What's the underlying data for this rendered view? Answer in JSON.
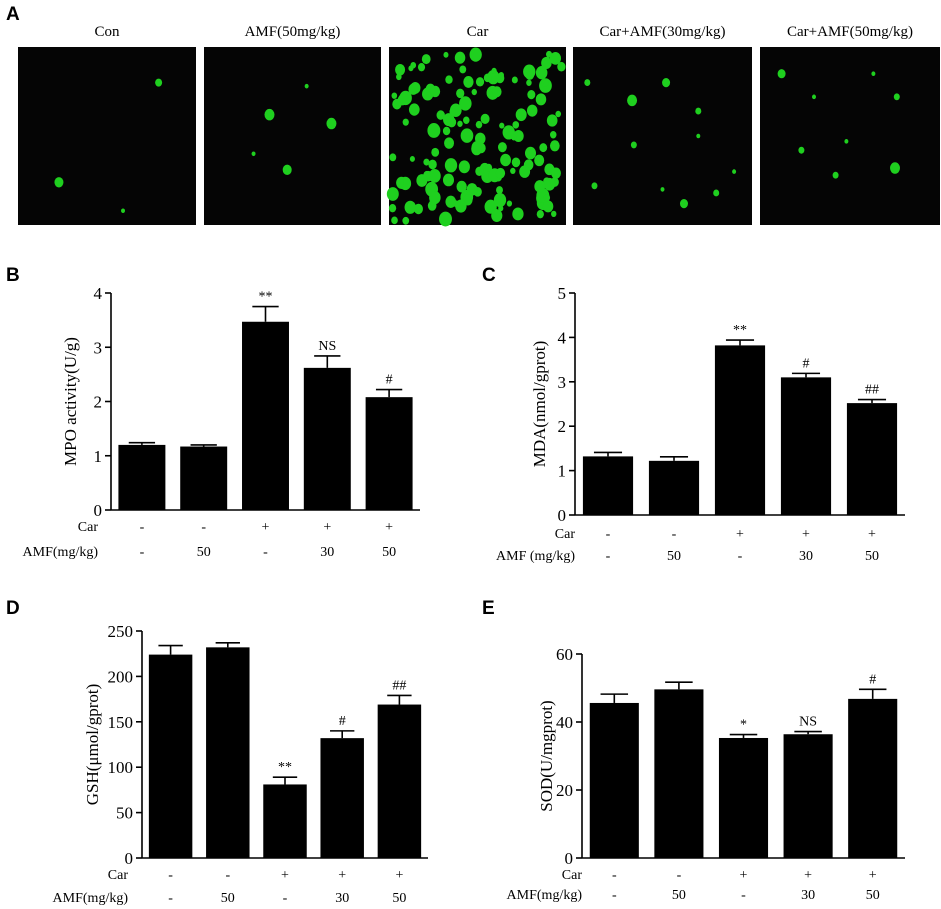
{
  "panel_a": {
    "letter": "A",
    "images": [
      {
        "title": "Con",
        "cell_count": "low"
      },
      {
        "title": "AMF(50mg/kg)",
        "cell_count": "low"
      },
      {
        "title": "Car",
        "cell_count": "high"
      },
      {
        "title": "Car+AMF(30mg/kg)",
        "cell_count": "moderate"
      },
      {
        "title": "Car+AMF(50mg/kg)",
        "cell_count": "low"
      }
    ],
    "background": "#050505",
    "cell_color": "#1fd01f"
  },
  "chart_data": [
    {
      "panel": "B",
      "type": "bar",
      "ylabel": "MPO activity(U/g)",
      "ylim": [
        0,
        4
      ],
      "yticks": [
        "0",
        "1",
        "2",
        "3",
        "4"
      ],
      "values": [
        1.2,
        1.17,
        3.47,
        2.62,
        2.08
      ],
      "errors": [
        0.04,
        0.03,
        0.28,
        0.22,
        0.14
      ],
      "significance": [
        "",
        "",
        "**",
        "NS",
        "#"
      ],
      "conditions": [
        {
          "label": "Car",
          "values": [
            "-",
            "-",
            "+",
            "+",
            "+"
          ]
        },
        {
          "label": "AMF(mg/kg)",
          "values": [
            "-",
            "50",
            "-",
            "30",
            "50"
          ]
        }
      ]
    },
    {
      "panel": "C",
      "type": "bar",
      "ylabel": "MDA(nmol/gprot)",
      "ylim": [
        0,
        5
      ],
      "yticks": [
        "0",
        "1",
        "2",
        "3",
        "4",
        "5"
      ],
      "values": [
        1.32,
        1.22,
        3.82,
        3.1,
        2.52
      ],
      "errors": [
        0.09,
        0.09,
        0.12,
        0.09,
        0.08
      ],
      "significance": [
        "",
        "",
        "**",
        "#",
        "##"
      ],
      "conditions": [
        {
          "label": "Car",
          "values": [
            "-",
            "-",
            "+",
            "+",
            "+"
          ]
        },
        {
          "label": "AMF (mg/kg)",
          "values": [
            "-",
            "50",
            "-",
            "30",
            "50"
          ]
        }
      ]
    },
    {
      "panel": "D",
      "type": "bar",
      "ylabel": "GSH(μmol/gprot)",
      "ylim": [
        0,
        250
      ],
      "yticks": [
        "0",
        "50",
        "100",
        "150",
        "200",
        "250"
      ],
      "values": [
        224,
        232,
        81,
        132,
        169
      ],
      "errors": [
        10,
        5,
        8,
        8,
        10
      ],
      "significance": [
        "",
        "",
        "**",
        "#",
        "##"
      ],
      "conditions": [
        {
          "label": "Car",
          "values": [
            "-",
            "-",
            "+",
            "+",
            "+"
          ]
        },
        {
          "label": "AMF(mg/kg)",
          "values": [
            "-",
            "50",
            "-",
            "30",
            "50"
          ]
        }
      ]
    },
    {
      "panel": "E",
      "type": "bar",
      "ylabel": "SOD(U/mgprot)",
      "ylim": [
        0,
        60
      ],
      "yticks": [
        "0",
        "20",
        "40",
        "60"
      ],
      "values": [
        45.6,
        49.6,
        35.3,
        36.4,
        46.8
      ],
      "errors": [
        2.6,
        2.1,
        1.0,
        0.8,
        2.8
      ],
      "significance": [
        "",
        "",
        "*",
        "NS",
        "#"
      ],
      "conditions": [
        {
          "label": "Car",
          "values": [
            "-",
            "-",
            "+",
            "+",
            "+"
          ]
        },
        {
          "label": "AMF(mg/kg)",
          "values": [
            "-",
            "50",
            "-",
            "30",
            "50"
          ]
        }
      ]
    }
  ]
}
